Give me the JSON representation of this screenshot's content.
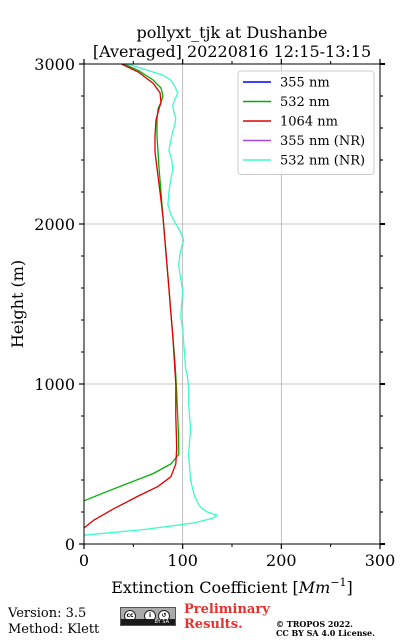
{
  "chart_data": {
    "type": "line",
    "title": [
      "pollyxt_tjk at Dushanbe",
      "[Averaged] 20220816 12:15-13:15"
    ],
    "xlabel": "Extinction Coefficient [Mm^{-1}]",
    "xlabel_main": "Extinction Coefficient [",
    "xlabel_unit": "Mm",
    "xlabel_exp": "−1",
    "xlabel_close": "]",
    "ylabel": "Height (m)",
    "xlim": [
      0,
      300
    ],
    "ylim": [
      0,
      3000
    ],
    "xticks": [
      0,
      100,
      200,
      300
    ],
    "yticks": [
      0,
      1000,
      2000,
      3000
    ],
    "grid": true,
    "legend_position": "top-right",
    "series": [
      {
        "name": "355 nm",
        "color": "#0000ff",
        "x": [],
        "y": []
      },
      {
        "name": "532 nm",
        "color": "#00b000",
        "x": [
          0,
          20,
          45,
          70,
          88,
          96,
          96,
          95,
          94,
          93,
          92,
          90,
          88,
          86,
          84,
          82,
          80,
          78,
          76,
          75,
          74,
          74,
          75,
          78,
          80,
          78,
          70,
          55,
          40
        ],
        "y": [
          270,
          320,
          380,
          440,
          500,
          560,
          650,
          800,
          950,
          1050,
          1150,
          1300,
          1450,
          1600,
          1750,
          1900,
          2050,
          2200,
          2350,
          2450,
          2550,
          2650,
          2720,
          2760,
          2800,
          2850,
          2900,
          2960,
          3000
        ]
      },
      {
        "name": "1064 nm",
        "color": "#e00000",
        "x": [
          0,
          10,
          30,
          55,
          75,
          88,
          93,
          94,
          93,
          93,
          92,
          90,
          88,
          86,
          84,
          82,
          80,
          77,
          74,
          72,
          72,
          73,
          76,
          78,
          77,
          70,
          55,
          38
        ],
        "y": [
          100,
          150,
          220,
          300,
          360,
          420,
          500,
          600,
          800,
          1000,
          1100,
          1300,
          1450,
          1600,
          1750,
          1900,
          2050,
          2200,
          2350,
          2450,
          2550,
          2650,
          2720,
          2760,
          2820,
          2880,
          2950,
          3000
        ]
      },
      {
        "name": "355 nm (NR)",
        "color": "#a347e6",
        "x": [],
        "y": []
      },
      {
        "name": "532 nm (NR)",
        "color": "#3dfcc8",
        "x": [
          0,
          60,
          110,
          130,
          135,
          125,
          118,
          115,
          112,
          110,
          108,
          107,
          106,
          107,
          108,
          107,
          106,
          106,
          105,
          103,
          102,
          101,
          100,
          98,
          99,
          100,
          98,
          96,
          97,
          99,
          101,
          97,
          93,
          88,
          85,
          86,
          88,
          90,
          89,
          86,
          88,
          90,
          92,
          93,
          91,
          90,
          92,
          94,
          95,
          92,
          90,
          88,
          80,
          65,
          50,
          42
        ],
        "y": [
          55,
          90,
          130,
          160,
          180,
          200,
          230,
          260,
          300,
          350,
          400,
          480,
          560,
          640,
          720,
          800,
          880,
          960,
          1040,
          1100,
          1180,
          1260,
          1340,
          1420,
          1500,
          1580,
          1660,
          1740,
          1800,
          1860,
          1900,
          1960,
          2000,
          2060,
          2120,
          2200,
          2280,
          2340,
          2400,
          2460,
          2520,
          2580,
          2620,
          2660,
          2700,
          2740,
          2780,
          2800,
          2820,
          2860,
          2880,
          2900,
          2930,
          2960,
          2990,
          3000
        ]
      }
    ]
  },
  "footer": {
    "version": "Version: 3.5",
    "method": "Method: Klett",
    "preliminary_line1": "Preliminary",
    "preliminary_line2": "Results.",
    "copyright_line1": "© TROPOS 2022.",
    "copyright_line2": "CC BY SA 4.0 License.",
    "cc_badge_text": "BY SA"
  }
}
